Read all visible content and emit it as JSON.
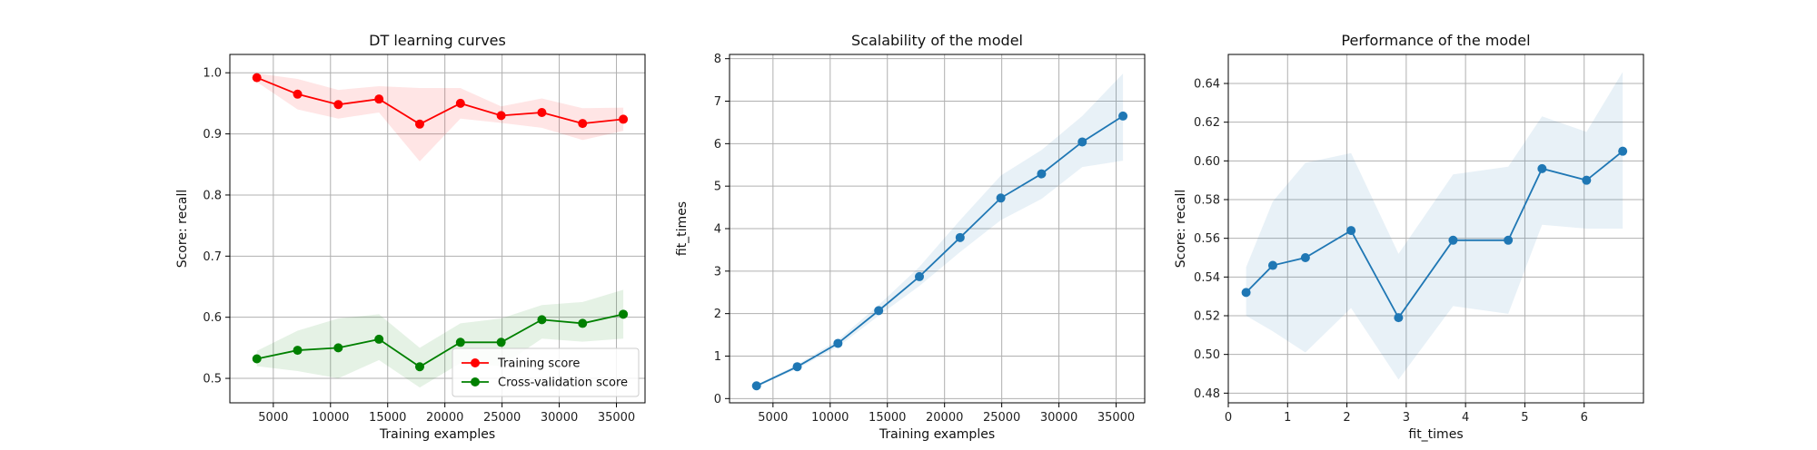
{
  "chart_data": [
    {
      "type": "line",
      "title": "DT learning curves",
      "xlabel": "Training examples",
      "ylabel": "Score: recall",
      "xlim": [
        1200,
        37500
      ],
      "ylim": [
        0.46,
        1.03
      ],
      "xticks": [
        5000,
        10000,
        15000,
        20000,
        25000,
        30000,
        35000
      ],
      "yticks": [
        0.5,
        0.6,
        0.7,
        0.8,
        0.9,
        1.0
      ],
      "xtick_labels": [
        "5000",
        "10000",
        "15000",
        "20000",
        "25000",
        "30000",
        "35000"
      ],
      "ytick_labels": [
        "0.5",
        "0.6",
        "0.7",
        "0.8",
        "0.9",
        "1.0"
      ],
      "grid": true,
      "legend_position": "lower-right",
      "x": [
        3560,
        7120,
        10680,
        14240,
        17800,
        21360,
        24920,
        28480,
        32040,
        35600
      ],
      "series": [
        {
          "name": "Training score",
          "color": "#ff0000",
          "values": [
            0.992,
            0.965,
            0.948,
            0.957,
            0.916,
            0.95,
            0.93,
            0.935,
            0.917,
            0.924
          ],
          "band_lower": [
            0.985,
            0.94,
            0.925,
            0.935,
            0.855,
            0.925,
            0.918,
            0.91,
            0.89,
            0.905
          ],
          "band_upper": [
            0.999,
            0.99,
            0.972,
            0.978,
            0.975,
            0.975,
            0.945,
            0.958,
            0.942,
            0.943
          ]
        },
        {
          "name": "Cross-validation score",
          "color": "#008000",
          "values": [
            0.532,
            0.546,
            0.55,
            0.564,
            0.519,
            0.559,
            0.559,
            0.596,
            0.59,
            0.605
          ],
          "band_lower": [
            0.52,
            0.512,
            0.5,
            0.53,
            0.485,
            0.525,
            0.52,
            0.565,
            0.56,
            0.565
          ],
          "band_upper": [
            0.545,
            0.578,
            0.598,
            0.605,
            0.55,
            0.59,
            0.598,
            0.62,
            0.625,
            0.645
          ]
        }
      ]
    },
    {
      "type": "line",
      "title": "Scalability of the model",
      "xlabel": "Training examples",
      "ylabel": "fit_times",
      "xlim": [
        1200,
        37500
      ],
      "ylim": [
        -0.1,
        8.1
      ],
      "xticks": [
        5000,
        10000,
        15000,
        20000,
        25000,
        30000,
        35000
      ],
      "yticks": [
        0,
        1,
        2,
        3,
        4,
        5,
        6,
        7,
        8
      ],
      "xtick_labels": [
        "5000",
        "10000",
        "15000",
        "20000",
        "25000",
        "30000",
        "35000"
      ],
      "ytick_labels": [
        "0",
        "1",
        "2",
        "3",
        "4",
        "5",
        "6",
        "7",
        "8"
      ],
      "grid": true,
      "x": [
        3560,
        7120,
        10680,
        14240,
        17800,
        21360,
        24920,
        28480,
        32040,
        35600
      ],
      "series": [
        {
          "color": "#1f77b4",
          "values": [
            0.3,
            0.75,
            1.3,
            2.07,
            2.87,
            3.79,
            4.72,
            5.29,
            6.04,
            6.65
          ],
          "band_lower": [
            0.27,
            0.7,
            1.22,
            1.95,
            2.65,
            3.45,
            4.2,
            4.7,
            5.45,
            5.6
          ],
          "band_upper": [
            0.33,
            0.8,
            1.38,
            2.2,
            3.1,
            4.2,
            5.25,
            5.85,
            6.65,
            7.65
          ]
        }
      ]
    },
    {
      "type": "line",
      "title": "Performance of the model",
      "xlabel": "fit_times",
      "ylabel": "Score: recall",
      "xlim": [
        0,
        7
      ],
      "ylim": [
        0.475,
        0.655
      ],
      "xticks": [
        0,
        1,
        2,
        3,
        4,
        5,
        6
      ],
      "yticks": [
        0.48,
        0.5,
        0.52,
        0.54,
        0.56,
        0.58,
        0.6,
        0.62,
        0.64
      ],
      "xtick_labels": [
        "0",
        "1",
        "2",
        "3",
        "4",
        "5",
        "6"
      ],
      "ytick_labels": [
        "0.48",
        "0.50",
        "0.52",
        "0.54",
        "0.56",
        "0.58",
        "0.60",
        "0.62",
        "0.64"
      ],
      "grid": true,
      "x": [
        0.3,
        0.75,
        1.3,
        2.07,
        2.87,
        3.79,
        4.72,
        5.29,
        6.04,
        6.65
      ],
      "series": [
        {
          "color": "#1f77b4",
          "values": [
            0.532,
            0.546,
            0.55,
            0.564,
            0.519,
            0.559,
            0.559,
            0.596,
            0.59,
            0.605
          ],
          "band_lower": [
            0.52,
            0.512,
            0.501,
            0.524,
            0.487,
            0.525,
            0.521,
            0.567,
            0.565,
            0.565
          ],
          "band_upper": [
            0.545,
            0.579,
            0.599,
            0.604,
            0.552,
            0.593,
            0.597,
            0.623,
            0.615,
            0.646
          ]
        }
      ]
    }
  ]
}
